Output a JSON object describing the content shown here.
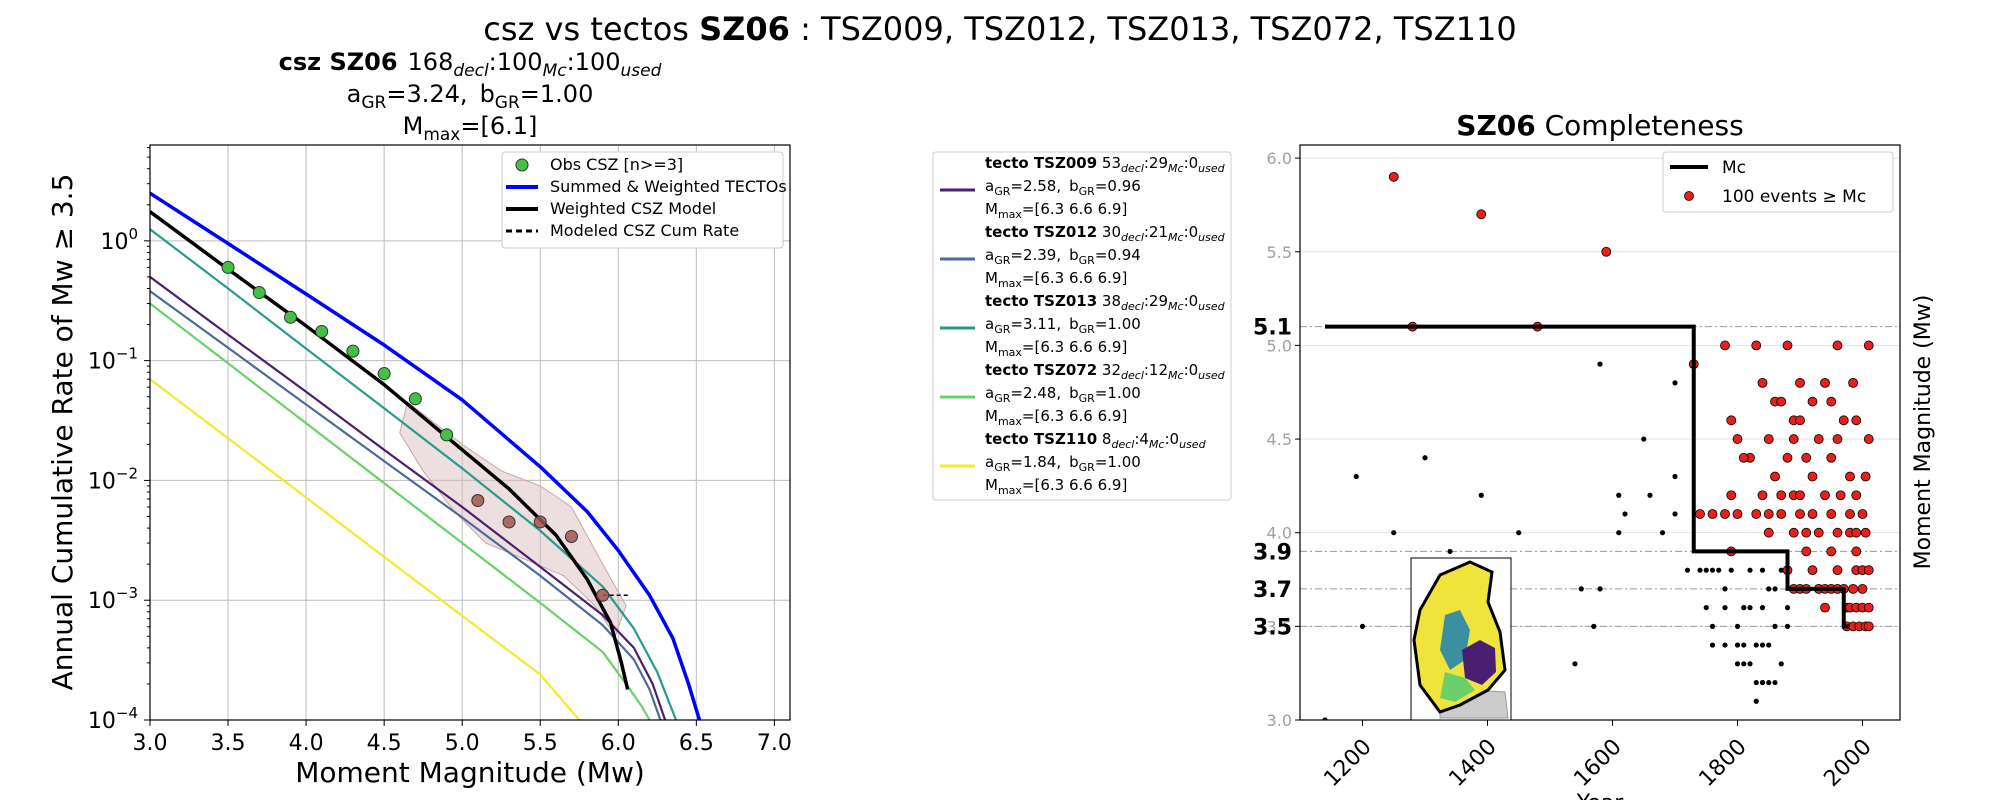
{
  "figure": {
    "suptitle_pre": "csz vs tectos ",
    "suptitle_bold": "SZ06",
    "suptitle_post": " : TSZ009, TSZ012, TSZ013, TSZ072, TSZ110"
  },
  "colors": {
    "tsz009": "#4b1f6f",
    "tsz012": "#4f6a9a",
    "tsz013": "#2a9a8f",
    "tsz072": "#6cd06a",
    "tsz110": "#f2ea2c",
    "summed": "#0000ff",
    "csz_model": "#000000",
    "obs_green": "#44c044",
    "obs_brown": "#a05650",
    "cloud": "#d8b8b8",
    "red_events": "#e8201c"
  },
  "chart_data": [
    {
      "type": "line",
      "title_bold": "csz SZ06",
      "title_rest": "168",
      "title_sub1": "decl",
      "title_mid1": ":100",
      "title_sub2": "Mc",
      "title_mid2": ":100",
      "title_sub3": "used",
      "agr_label": "a",
      "agr_sub": "GR",
      "agr_value": "=3.24,",
      "bgr_label": "b",
      "bgr_sub": "GR",
      "bgr_value": "=1.00",
      "mmax_label": "M",
      "mmax_sub": "max",
      "mmax_value": "=[6.1]",
      "xlabel": "Moment Magnitude (Mw)",
      "ylabel": "Annual Cumulative Rate of Mw  ≥  3.5",
      "xlim": [
        3.0,
        7.1
      ],
      "ylim_log10": [
        -4,
        0.8
      ],
      "xticks": [
        3.0,
        3.5,
        4.0,
        4.5,
        5.0,
        5.5,
        6.0,
        6.5,
        7.0
      ],
      "xtick_labels": [
        "3.0",
        "3.5",
        "4.0",
        "4.5",
        "5.0",
        "5.5",
        "6.0",
        "6.5",
        "7.0"
      ],
      "yticks": [
        {
          "base": "10",
          "exp": "0",
          "log": 0
        },
        {
          "base": "10",
          "exp": "−1",
          "log": -1
        },
        {
          "base": "10",
          "exp": "−2",
          "log": -2
        },
        {
          "base": "10",
          "exp": "−3",
          "log": -3
        },
        {
          "base": "10",
          "exp": "−4",
          "log": -4
        }
      ],
      "grid": true,
      "legend_placement": "upper-right",
      "legend": [
        {
          "label": "Obs CSZ [n>=3]",
          "kind": "marker"
        },
        {
          "label": "Summed & Weighted TECTOs",
          "kind": "blue-line"
        },
        {
          "label": "Weighted CSZ Model",
          "kind": "black-line"
        },
        {
          "label": "Modeled CSZ Cum Rate",
          "kind": "dashed-line"
        }
      ],
      "obs_points": [
        {
          "x": 3.5,
          "y": 0.6,
          "group": "green"
        },
        {
          "x": 3.7,
          "y": 0.37,
          "group": "green"
        },
        {
          "x": 3.9,
          "y": 0.23,
          "group": "green"
        },
        {
          "x": 4.1,
          "y": 0.175,
          "group": "green"
        },
        {
          "x": 4.3,
          "y": 0.12,
          "group": "green"
        },
        {
          "x": 4.5,
          "y": 0.078,
          "group": "green"
        },
        {
          "x": 4.7,
          "y": 0.048,
          "group": "green"
        },
        {
          "x": 4.9,
          "y": 0.024,
          "group": "green"
        },
        {
          "x": 5.1,
          "y": 0.0068,
          "group": "brown"
        },
        {
          "x": 5.3,
          "y": 0.0045,
          "group": "brown"
        },
        {
          "x": 5.5,
          "y": 0.0045,
          "group": "brown"
        },
        {
          "x": 5.7,
          "y": 0.0034,
          "group": "brown"
        },
        {
          "x": 5.9,
          "y": 0.0011,
          "group": "brown"
        }
      ],
      "series": [
        {
          "key": "summed",
          "x": [
            3.0,
            3.5,
            4.0,
            4.5,
            5.0,
            5.5,
            5.8,
            6.0,
            6.2,
            6.35,
            6.45,
            6.52
          ],
          "y": [
            2.5,
            0.95,
            0.36,
            0.135,
            0.047,
            0.013,
            0.0055,
            0.0026,
            0.0011,
            0.00048,
            0.0002,
            0.0001
          ]
        },
        {
          "key": "csz_model",
          "x": [
            3.0,
            3.5,
            4.0,
            4.5,
            5.0,
            5.3,
            5.6,
            5.8,
            5.95,
            6.02,
            6.06
          ],
          "y": [
            1.75,
            0.58,
            0.195,
            0.063,
            0.018,
            0.0085,
            0.0035,
            0.0015,
            0.00065,
            0.0003,
            0.00018
          ]
        },
        {
          "key": "tsz013",
          "x": [
            3.0,
            3.5,
            4.0,
            4.5,
            5.0,
            5.5,
            5.9,
            6.1,
            6.25,
            6.37
          ],
          "y": [
            1.25,
            0.4,
            0.126,
            0.04,
            0.0126,
            0.0038,
            0.0013,
            0.00058,
            0.00025,
            0.0001
          ]
        },
        {
          "key": "tsz009",
          "x": [
            3.0,
            3.5,
            4.0,
            4.5,
            5.0,
            5.5,
            5.9,
            6.1,
            6.22,
            6.3
          ],
          "y": [
            0.5,
            0.165,
            0.055,
            0.018,
            0.006,
            0.0019,
            0.00075,
            0.0004,
            0.0002,
            0.0001
          ]
        },
        {
          "key": "tsz012",
          "x": [
            3.0,
            3.5,
            4.0,
            4.5,
            5.0,
            5.5,
            5.9,
            6.1,
            6.2,
            6.27
          ],
          "y": [
            0.38,
            0.128,
            0.043,
            0.0145,
            0.0049,
            0.0016,
            0.00062,
            0.00032,
            0.00018,
            0.0001
          ]
        },
        {
          "key": "tsz072",
          "x": [
            3.0,
            3.5,
            4.0,
            4.5,
            5.0,
            5.5,
            5.9,
            6.05,
            6.15,
            6.2
          ],
          "y": [
            0.3,
            0.095,
            0.03,
            0.0095,
            0.003,
            0.00095,
            0.00037,
            0.0002,
            0.00013,
            0.0001
          ]
        },
        {
          "key": "tsz110",
          "x": [
            3.0,
            3.5,
            4.0,
            4.5,
            5.0,
            5.5,
            5.75
          ],
          "y": [
            0.07,
            0.0225,
            0.0072,
            0.0023,
            0.00074,
            0.00024,
            0.0001
          ]
        }
      ],
      "dashed_segment": {
        "x": [
          5.9,
          6.07
        ],
        "y": [
          0.0011,
          0.0011
        ]
      }
    },
    {
      "type": "table",
      "entries": [
        {
          "key": "tsz009",
          "bold": "tecto TSZ009",
          "n_decl": "53",
          "n_mc": ":29",
          "n_used": ":0",
          "agr": "=2.58,",
          "bgr": "=0.96",
          "mmax": "=[6.3 6.6 6.9]"
        },
        {
          "key": "tsz012",
          "bold": "tecto TSZ012",
          "n_decl": "30",
          "n_mc": ":21",
          "n_used": ":0",
          "agr": "=2.39,",
          "bgr": "=0.94",
          "mmax": "=[6.3 6.6 6.9]"
        },
        {
          "key": "tsz013",
          "bold": "tecto TSZ013",
          "n_decl": "38",
          "n_mc": ":29",
          "n_used": ":0",
          "agr": "=3.11,",
          "bgr": "=1.00",
          "mmax": "=[6.3 6.6 6.9]"
        },
        {
          "key": "tsz072",
          "bold": "tecto TSZ072",
          "n_decl": "32",
          "n_mc": ":12",
          "n_used": ":0",
          "agr": "=2.48,",
          "bgr": "=1.00",
          "mmax": "=[6.3 6.6 6.9]"
        },
        {
          "key": "tsz110",
          "bold": "tecto TSZ110",
          "n_decl": "8",
          "n_mc": ":4",
          "n_used": ":0",
          "agr": "=1.84,",
          "bgr": "=1.00",
          "mmax": "=[6.3 6.6 6.9]"
        }
      ],
      "sub_decl": "decl",
      "sub_mc": "Mc",
      "sub_used": "used",
      "a_label": "a",
      "b_label": "b",
      "gr_sub": "GR",
      "m_label": "M",
      "max_sub": "max"
    },
    {
      "type": "scatter",
      "title_bold": "SZ06",
      "title_rest": " Completeness",
      "xlabel": "Year",
      "ylabel": "Moment Magnitude (Mw)",
      "xlim": [
        1100,
        2060
      ],
      "ylim": [
        3.0,
        6.07
      ],
      "xticks": [
        1200,
        1400,
        1600,
        1800,
        2000
      ],
      "xtick_labels": [
        "1200",
        "1400",
        "1600",
        "1800",
        "2000"
      ],
      "yticks": [
        3.0,
        3.5,
        4.0,
        4.5,
        5.0,
        5.5,
        6.0
      ],
      "ytick_labels": [
        "3.0",
        "3.5",
        "4.0",
        "4.5",
        "5.0",
        "5.5",
        "6.0"
      ],
      "mc_levels": [
        5.1,
        3.9,
        3.7,
        3.5
      ],
      "mc_labels": [
        "5.1",
        "3.9",
        "3.7",
        "3.5"
      ],
      "legend_placement": "upper-right",
      "legend": [
        {
          "label": "Mc",
          "kind": "line"
        },
        {
          "label": "100 events  ≥  Mc",
          "kind": "red-marker"
        }
      ],
      "mc_step": {
        "x": [
          1140,
          1730,
          1730,
          1880,
          1880,
          1970,
          1970,
          1980
        ],
        "y": [
          5.1,
          5.1,
          3.9,
          3.9,
          3.7,
          3.7,
          3.5,
          3.5
        ]
      },
      "red_events": [
        [
          1250,
          5.9
        ],
        [
          1390,
          5.7
        ],
        [
          1590,
          5.5
        ],
        [
          1280,
          5.1
        ],
        [
          1480,
          5.1
        ],
        [
          1730,
          4.9
        ],
        [
          1780,
          5.0
        ],
        [
          1830,
          5.0
        ],
        [
          1880,
          5.0
        ],
        [
          1960,
          5.0
        ],
        [
          2010,
          5.0
        ],
        [
          1840,
          4.8
        ],
        [
          1900,
          4.8
        ],
        [
          1940,
          4.8
        ],
        [
          1985,
          4.8
        ],
        [
          1790,
          4.6
        ],
        [
          1860,
          4.7
        ],
        [
          1870,
          4.7
        ],
        [
          1890,
          4.6
        ],
        [
          1900,
          4.6
        ],
        [
          1920,
          4.7
        ],
        [
          1950,
          4.7
        ],
        [
          1970,
          4.6
        ],
        [
          1800,
          4.5
        ],
        [
          1820,
          4.4
        ],
        [
          1850,
          4.5
        ],
        [
          1890,
          4.5
        ],
        [
          1910,
          4.4
        ],
        [
          1930,
          4.5
        ],
        [
          1960,
          4.5
        ],
        [
          1990,
          4.6
        ],
        [
          2010,
          4.5
        ],
        [
          1810,
          4.4
        ],
        [
          1860,
          4.3
        ],
        [
          1880,
          4.4
        ],
        [
          1920,
          4.3
        ],
        [
          1950,
          4.4
        ],
        [
          1980,
          4.3
        ],
        [
          2005,
          4.3
        ],
        [
          1790,
          4.2
        ],
        [
          1840,
          4.2
        ],
        [
          1870,
          4.2
        ],
        [
          1890,
          4.2
        ],
        [
          1900,
          4.2
        ],
        [
          1940,
          4.2
        ],
        [
          1965,
          4.2
        ],
        [
          1990,
          4.2
        ],
        [
          1740,
          4.1
        ],
        [
          1760,
          4.1
        ],
        [
          1780,
          4.1
        ],
        [
          1800,
          4.1
        ],
        [
          1830,
          4.1
        ],
        [
          1850,
          4.1
        ],
        [
          1870,
          4.1
        ],
        [
          1900,
          4.1
        ],
        [
          1920,
          4.1
        ],
        [
          1950,
          4.1
        ],
        [
          1980,
          4.1
        ],
        [
          2000,
          4.1
        ],
        [
          1850,
          4.0
        ],
        [
          1890,
          4.0
        ],
        [
          1910,
          4.0
        ],
        [
          1930,
          4.0
        ],
        [
          1960,
          4.0
        ],
        [
          1980,
          4.0
        ],
        [
          1990,
          4.0
        ],
        [
          2005,
          4.0
        ],
        [
          1790,
          3.9
        ],
        [
          1910,
          3.9
        ],
        [
          1950,
          3.9
        ],
        [
          1990,
          3.9
        ],
        [
          1880,
          3.8
        ],
        [
          1920,
          3.8
        ],
        [
          1960,
          3.8
        ],
        [
          1990,
          3.8
        ],
        [
          2000,
          3.8
        ],
        [
          2010,
          3.8
        ],
        [
          1890,
          3.7
        ],
        [
          1900,
          3.7
        ],
        [
          1910,
          3.7
        ],
        [
          1930,
          3.7
        ],
        [
          1940,
          3.7
        ],
        [
          1950,
          3.7
        ],
        [
          1960,
          3.7
        ],
        [
          1970,
          3.7
        ],
        [
          1985,
          3.7
        ],
        [
          2000,
          3.7
        ],
        [
          1975,
          3.6
        ],
        [
          1980,
          3.6
        ],
        [
          1990,
          3.6
        ],
        [
          2000,
          3.6
        ],
        [
          2010,
          3.6
        ],
        [
          1975,
          3.5
        ],
        [
          1985,
          3.5
        ],
        [
          1995,
          3.5
        ],
        [
          2005,
          3.5
        ],
        [
          2010,
          3.5
        ],
        [
          1940,
          3.6
        ]
      ],
      "black_events": [
        [
          1140,
          3.0
        ],
        [
          1190,
          4.3
        ],
        [
          1200,
          3.5
        ],
        [
          1250,
          4.0
        ],
        [
          1300,
          4.4
        ],
        [
          1340,
          3.9
        ],
        [
          1390,
          4.2
        ],
        [
          1450,
          4.0
        ],
        [
          1540,
          3.3
        ],
        [
          1550,
          3.7
        ],
        [
          1570,
          3.5
        ],
        [
          1580,
          3.7
        ],
        [
          1580,
          4.9
        ],
        [
          1610,
          4.2
        ],
        [
          1610,
          4.0
        ],
        [
          1620,
          4.1
        ],
        [
          1650,
          4.5
        ],
        [
          1660,
          4.2
        ],
        [
          1680,
          4.0
        ],
        [
          1700,
          4.1
        ],
        [
          1700,
          4.8
        ],
        [
          1700,
          4.3
        ],
        [
          1720,
          3.8
        ],
        [
          1740,
          3.8
        ],
        [
          1750,
          3.8
        ],
        [
          1760,
          3.8
        ],
        [
          1770,
          3.8
        ],
        [
          1780,
          3.7
        ],
        [
          1790,
          3.8
        ],
        [
          1750,
          3.6
        ],
        [
          1760,
          3.5
        ],
        [
          1780,
          3.6
        ],
        [
          1800,
          3.5
        ],
        [
          1810,
          3.6
        ],
        [
          1760,
          3.4
        ],
        [
          1780,
          3.4
        ],
        [
          1800,
          3.4
        ],
        [
          1810,
          3.4
        ],
        [
          1830,
          3.4
        ],
        [
          1840,
          3.4
        ],
        [
          1850,
          3.4
        ],
        [
          1800,
          3.3
        ],
        [
          1820,
          3.3
        ],
        [
          1830,
          3.2
        ],
        [
          1840,
          3.2
        ],
        [
          1850,
          3.2
        ],
        [
          1810,
          3.3
        ],
        [
          1830,
          3.1
        ],
        [
          1840,
          3.2
        ],
        [
          1860,
          3.2
        ],
        [
          1870,
          3.3
        ],
        [
          1820,
          3.6
        ],
        [
          1840,
          3.6
        ],
        [
          1860,
          3.5
        ],
        [
          1880,
          3.6
        ],
        [
          1860,
          3.7
        ],
        [
          1870,
          3.8
        ],
        [
          1840,
          3.8
        ],
        [
          1850,
          3.7
        ],
        [
          1820,
          3.8
        ],
        [
          1880,
          3.5
        ]
      ]
    }
  ]
}
